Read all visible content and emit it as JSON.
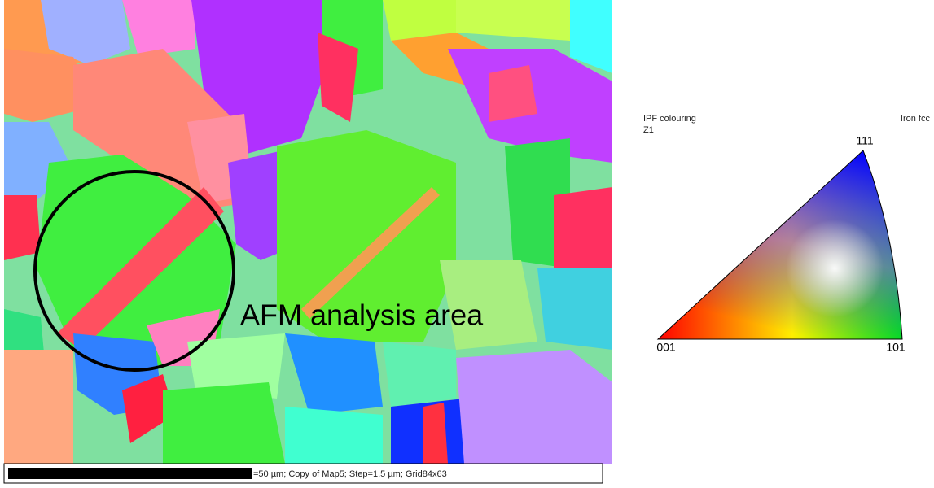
{
  "map": {
    "annotation": "AFM analysis area",
    "scale_bar_text": "=50 µm; Copy of Map5; Step=1.5 µm; Grid84x63"
  },
  "legend": {
    "title": "IPF colouring",
    "phase": "Iron fcc",
    "direction": "Z1",
    "corners": {
      "top": "111",
      "left": "001",
      "right": "101"
    }
  }
}
